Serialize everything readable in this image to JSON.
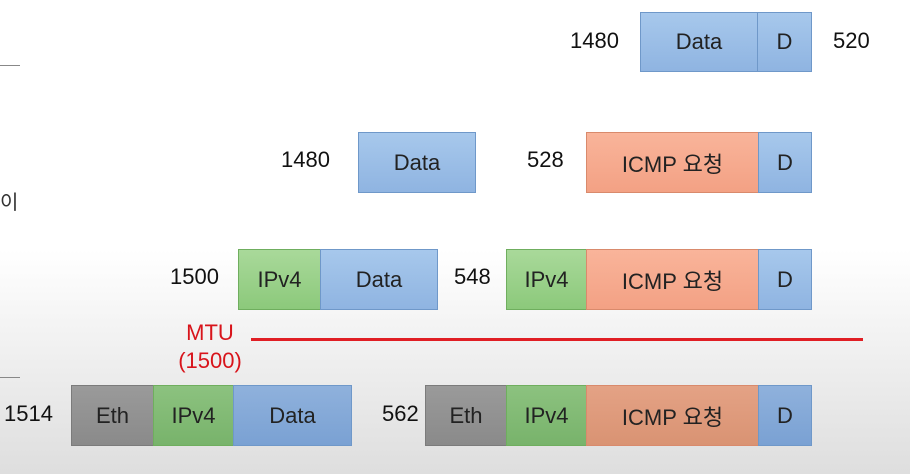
{
  "edge_text": "이",
  "row1": {
    "left_num": "1480",
    "data": "Data",
    "d": "D",
    "right_num": "520"
  },
  "row2": {
    "left_num": "1480",
    "data": "Data",
    "mid_num": "528",
    "icmp": "ICMP 요청",
    "d": "D"
  },
  "row3": {
    "left_num": "1500",
    "ipv4": "IPv4",
    "data": "Data",
    "mid_num": "548",
    "ipv4_b": "IPv4",
    "icmp": "ICMP 요청",
    "d": "D"
  },
  "mtu": {
    "label": "MTU",
    "value": "(1500)",
    "color": "#e01e24"
  },
  "row4": {
    "left_num": "1514",
    "eth": "Eth",
    "ipv4": "IPv4",
    "data": "Data",
    "mid_num": "562",
    "eth_b": "Eth",
    "ipv4_b": "IPv4",
    "icmp": "ICMP 요청",
    "d": "D"
  },
  "colors": {
    "data": "#9bbde6",
    "icmp": "#f6aa8e",
    "ipv4": "#9bd18b",
    "eth": "#a0a0a0"
  }
}
